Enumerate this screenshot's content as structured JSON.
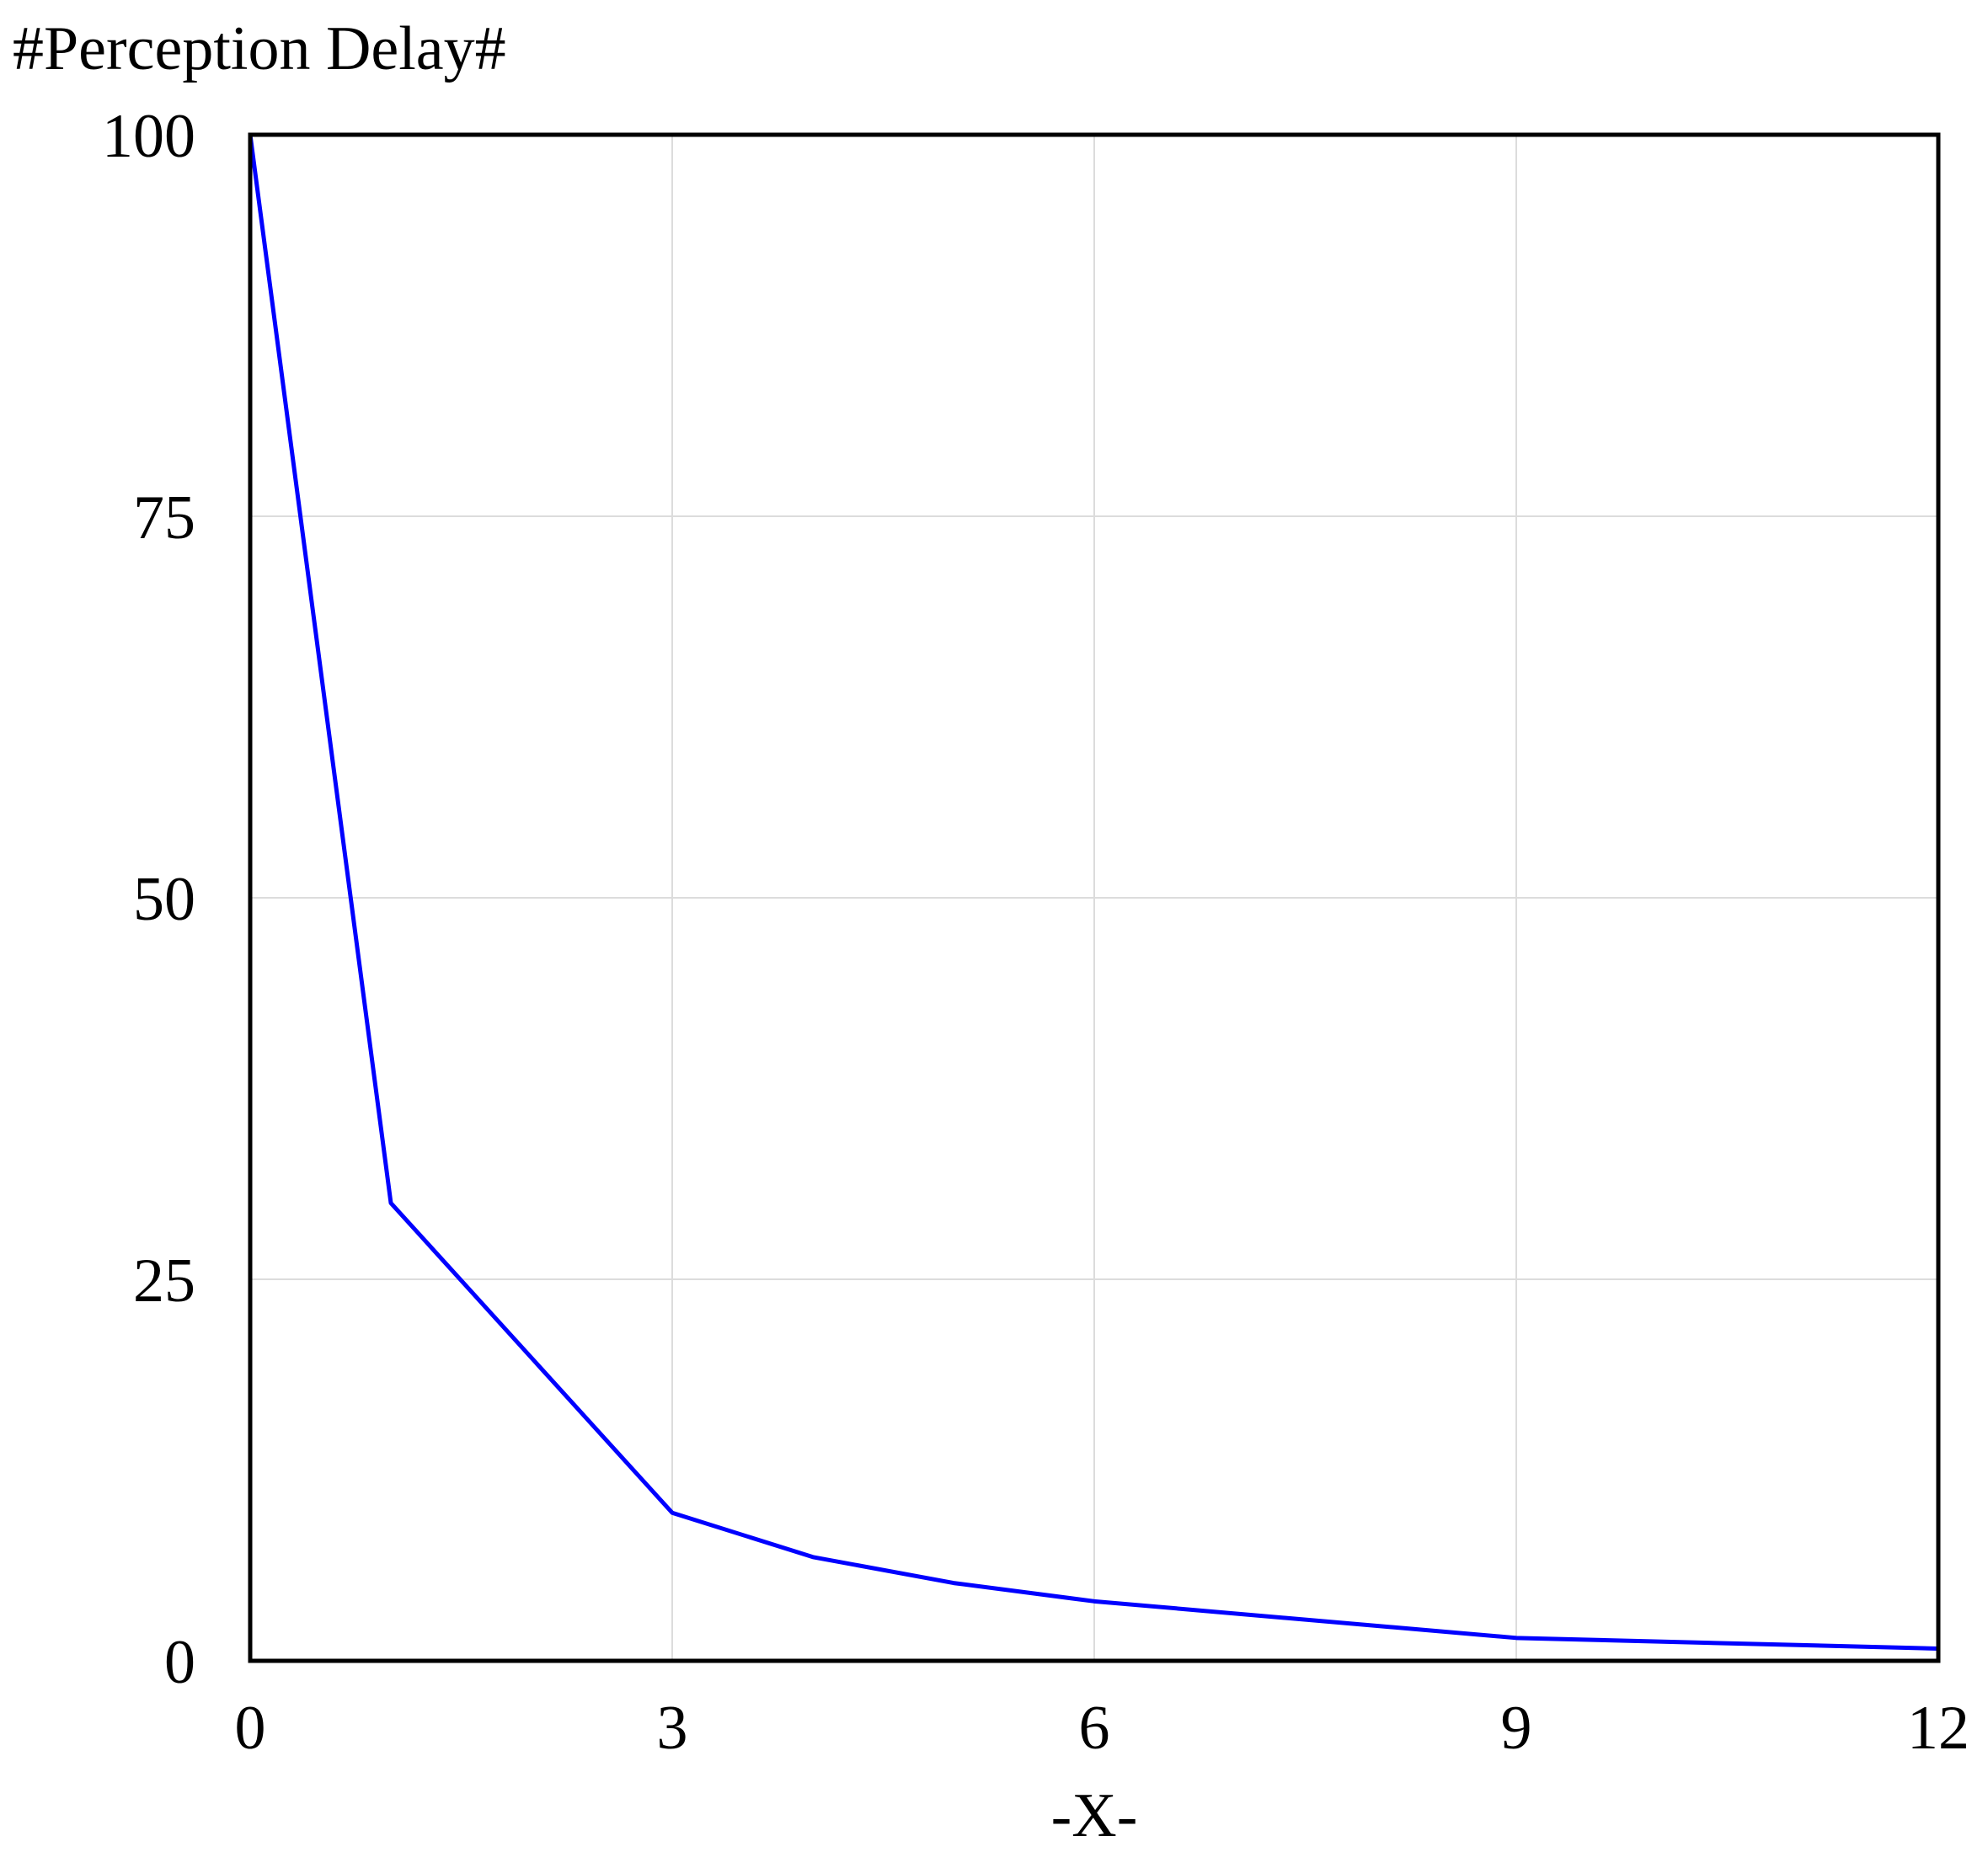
{
  "chart_data": {
    "type": "line",
    "title": "#Perception Delay#",
    "xlabel": "-X-",
    "ylabel": "",
    "xlim": [
      0,
      12
    ],
    "ylim": [
      0,
      100
    ],
    "x_ticks": [
      0,
      3,
      6,
      9,
      12
    ],
    "y_ticks": [
      0,
      25,
      50,
      75,
      100
    ],
    "x_tick_labels": [
      "0",
      "3",
      "6",
      "9",
      "12"
    ],
    "y_tick_labels": [
      "0",
      "25",
      "50",
      "75",
      "100"
    ],
    "grid": true,
    "series": [
      {
        "color": "#0000ff",
        "x": [
          0,
          1,
          3,
          4,
          5,
          6,
          9,
          12
        ],
        "y": [
          100,
          30,
          9.7,
          6.8,
          5.1,
          3.9,
          1.5,
          0.8
        ]
      }
    ]
  }
}
